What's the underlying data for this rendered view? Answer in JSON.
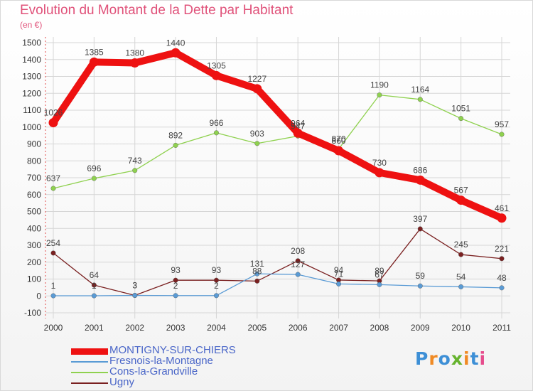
{
  "title": "Evolution du Montant de la Dette par Habitant",
  "subtitle": "(en €)",
  "logo": {
    "text": "Proxiti",
    "colors": [
      "#3d8fd6",
      "#f08a24",
      "#3d8fd6",
      "#66b32e",
      "#f08a24",
      "#3d8fd6",
      "#e64c8c"
    ]
  },
  "chart_data": {
    "type": "line",
    "title": "Evolution du Montant de la Dette par Habitant",
    "subtitle": "(en €)",
    "x": [
      "2000",
      "2001",
      "2002",
      "2003",
      "2004",
      "2005",
      "2006",
      "2007",
      "2008",
      "2009",
      "2010",
      "2011"
    ],
    "ylim": [
      -100,
      1500
    ],
    "yticks": [
      -100,
      0,
      100,
      200,
      300,
      400,
      500,
      600,
      700,
      800,
      900,
      1000,
      1100,
      1200,
      1300,
      1400,
      1500
    ],
    "grid": true,
    "legend_position": "bottom",
    "series": [
      {
        "name": "MONTIGNY-SUR-CHIERS",
        "color": "#ee1111",
        "values": [
          1026,
          1385,
          1380,
          1440,
          1305,
          1227,
          964,
          860,
          730,
          686,
          567,
          461
        ],
        "labels": [
          "1026",
          "1385",
          "1380",
          "1440",
          "1305",
          "1227",
          "964",
          "860",
          "730",
          "686",
          "567",
          "461"
        ]
      },
      {
        "name": "Fresnois-la-Montagne",
        "color": "#5a9bd5",
        "values": [
          1,
          1,
          3,
          2,
          2,
          131,
          127,
          71,
          67,
          59,
          54,
          48
        ],
        "labels": [
          "1",
          "1",
          "3",
          "2",
          "2",
          "131",
          "127",
          "71",
          "67",
          "59",
          "54",
          "48"
        ]
      },
      {
        "name": "Cons-la-Grandville",
        "color": "#8fd14f",
        "values": [
          637,
          696,
          743,
          892,
          966,
          903,
          947,
          870,
          1190,
          1164,
          1051,
          957
        ],
        "labels": [
          "637",
          "696",
          "743",
          "892",
          "966",
          "903",
          "947",
          "870",
          "1190",
          "1164",
          "1051",
          "957"
        ]
      },
      {
        "name": "Ugny",
        "color": "#7a2020",
        "values": [
          254,
          64,
          3,
          93,
          93,
          88,
          208,
          94,
          89,
          397,
          245,
          221
        ],
        "labels": [
          "254",
          "64",
          "3",
          "93",
          "93",
          "88",
          "208",
          "94",
          "89",
          "397",
          "245",
          "221"
        ]
      }
    ]
  }
}
